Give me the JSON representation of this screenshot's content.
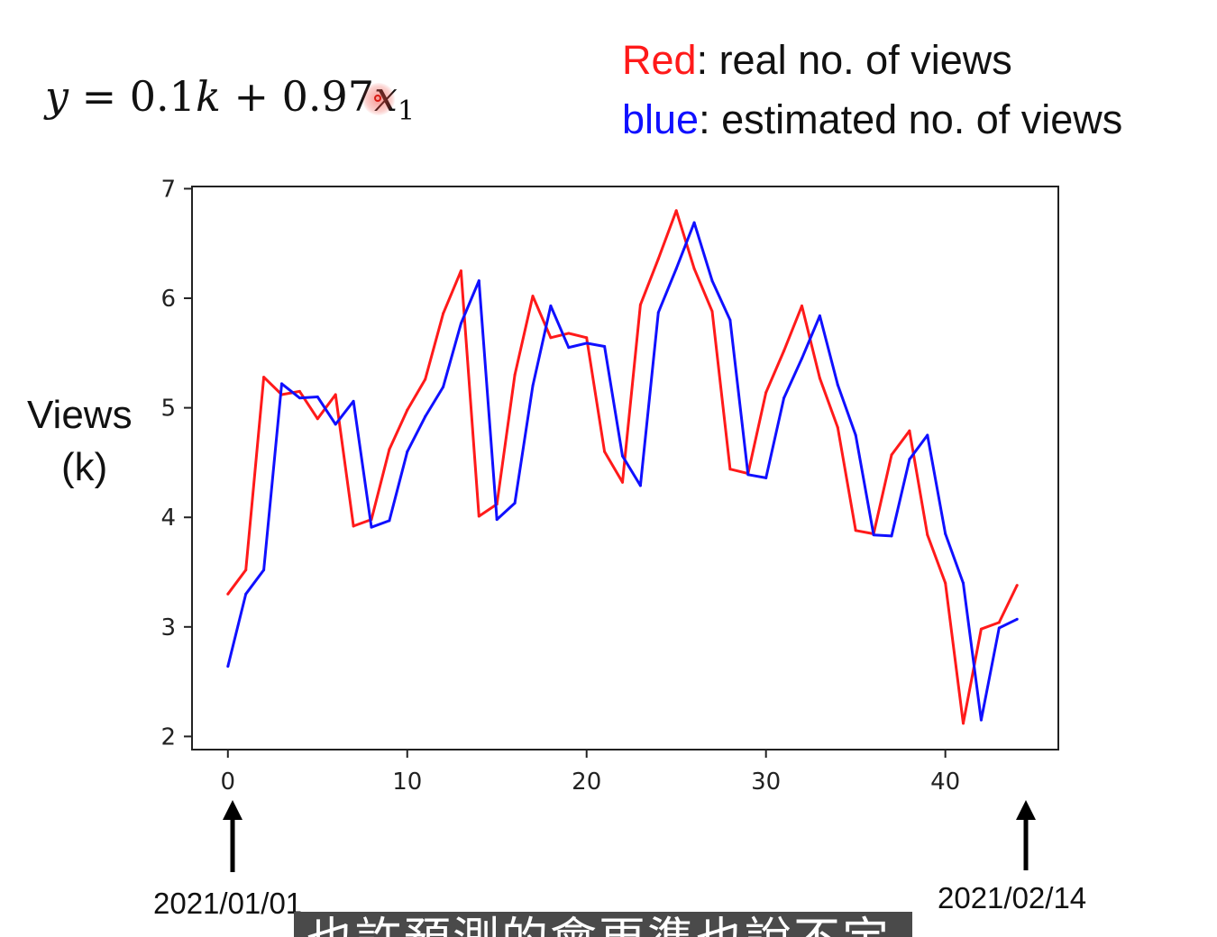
{
  "formula": {
    "y": "y",
    "eq": " = 0.1",
    "k": "k",
    "plus": " + 0.97",
    "x": "x",
    "sub": "1"
  },
  "legend": {
    "red_word": "Red",
    "red_rest": ": real no. of views",
    "blue_word": "blue",
    "blue_rest": ":  estimated no. of views"
  },
  "axis_label": {
    "line1": "Views",
    "line2": "(k)"
  },
  "annotations": {
    "start_date": "2021/01/01",
    "end_date": "2021/02/14"
  },
  "subtitle_text": "也許預測的會更準也說不定",
  "chart_data": {
    "type": "line",
    "xlim": [
      -2,
      46.3
    ],
    "ylim": [
      1.88,
      7.02
    ],
    "xticks": [
      0,
      10,
      20,
      30,
      40
    ],
    "yticks": [
      2,
      3,
      4,
      5,
      6,
      7
    ],
    "grid": false,
    "series": [
      {
        "name": "Red",
        "color": "#ff1a1a",
        "x": [
          0,
          1,
          2,
          3,
          4,
          5,
          6,
          7,
          8,
          9,
          10,
          11,
          12,
          13,
          14,
          15,
          16,
          17,
          18,
          19,
          20,
          21,
          22,
          23,
          24,
          25,
          26,
          27,
          28,
          29,
          30,
          31,
          32,
          33,
          34,
          35,
          36,
          37,
          38,
          39,
          40,
          41,
          42,
          43,
          44
        ],
        "values": [
          3.3,
          3.52,
          5.28,
          5.12,
          5.15,
          4.9,
          5.12,
          3.92,
          3.98,
          4.62,
          4.98,
          5.26,
          5.86,
          6.25,
          4.01,
          4.12,
          5.3,
          6.02,
          5.64,
          5.68,
          5.64,
          4.6,
          4.32,
          5.94,
          6.36,
          6.8,
          6.27,
          5.88,
          4.44,
          4.4,
          5.14,
          5.52,
          5.93,
          5.27,
          4.82,
          3.88,
          3.85,
          4.57,
          4.79,
          3.84,
          3.4,
          2.12,
          2.98,
          3.04,
          3.38
        ]
      },
      {
        "name": "blue",
        "color": "#1010ff",
        "x": [
          0,
          1,
          2,
          3,
          4,
          5,
          6,
          7,
          8,
          9,
          10,
          11,
          12,
          13,
          14,
          15,
          16,
          17,
          18,
          19,
          20,
          21,
          22,
          23,
          24,
          25,
          26,
          27,
          28,
          29,
          30,
          31,
          32,
          33,
          34,
          35,
          36,
          37,
          38,
          39,
          40,
          41,
          42,
          43,
          44
        ],
        "values": [
          2.64,
          3.3,
          3.52,
          5.22,
          5.09,
          5.1,
          4.85,
          5.06,
          3.91,
          3.97,
          4.6,
          4.92,
          5.19,
          5.77,
          6.16,
          3.98,
          4.13,
          5.2,
          5.93,
          5.55,
          5.59,
          5.56,
          4.56,
          4.29,
          5.87,
          6.27,
          6.69,
          6.16,
          5.8,
          4.39,
          4.36,
          5.09,
          5.45,
          5.84,
          5.21,
          4.75,
          3.84,
          3.83,
          4.53,
          4.75,
          3.85,
          3.4,
          2.15,
          2.99,
          3.07
        ]
      }
    ]
  }
}
